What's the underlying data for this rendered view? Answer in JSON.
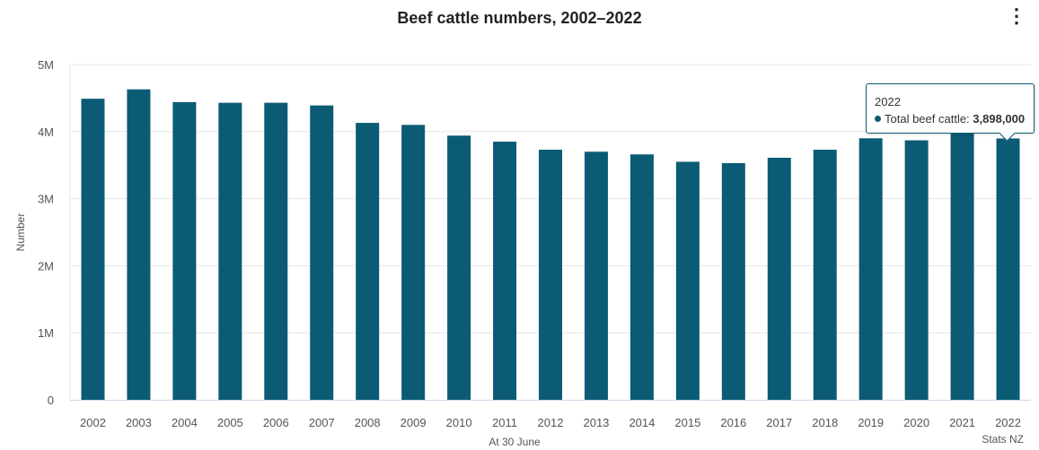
{
  "chart_data": {
    "type": "bar",
    "title": "Beef cattle numbers, 2002–2022",
    "xlabel": "At 30 June",
    "ylabel": "Number",
    "credits": "Stats NZ",
    "ylim": [
      0,
      5000000
    ],
    "yticks": [
      0,
      1000000,
      2000000,
      3000000,
      4000000,
      5000000
    ],
    "ytick_labels": [
      "0",
      "1M",
      "2M",
      "3M",
      "4M",
      "5M"
    ],
    "grid": true,
    "categories": [
      "2002",
      "2003",
      "2004",
      "2005",
      "2006",
      "2007",
      "2008",
      "2009",
      "2010",
      "2011",
      "2012",
      "2013",
      "2014",
      "2015",
      "2016",
      "2017",
      "2018",
      "2019",
      "2020",
      "2021",
      "2022"
    ],
    "series": [
      {
        "name": "Total beef cattle",
        "color": "#0b5b74",
        "values": [
          4490000,
          4630000,
          4440000,
          4430000,
          4430000,
          4390000,
          4130000,
          4100000,
          3940000,
          3850000,
          3730000,
          3700000,
          3660000,
          3550000,
          3530000,
          3610000,
          3730000,
          3900000,
          3870000,
          3970000,
          3898000
        ]
      }
    ],
    "tooltip": {
      "category": "2022",
      "label": "Total beef cattle: ",
      "value": "3,898,000"
    }
  },
  "menu_icon": "vertical-ellipsis-icon"
}
